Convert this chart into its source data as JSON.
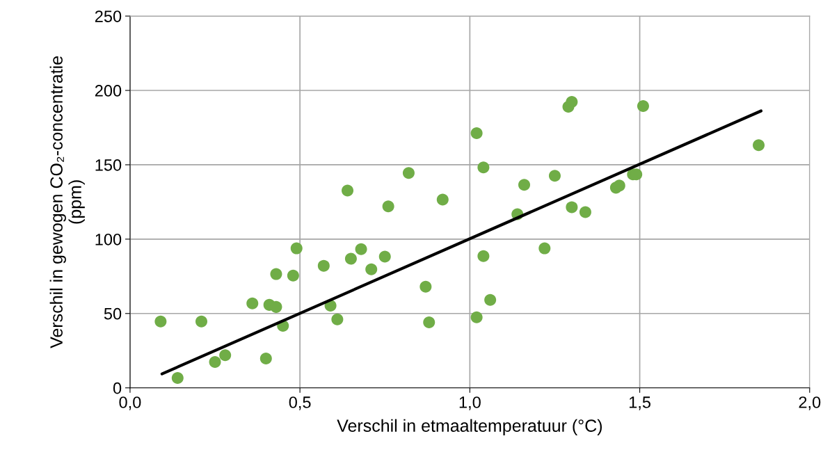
{
  "chart_data": {
    "type": "scatter",
    "xlabel": "Verschil in etmaaltemperatuur (°C)",
    "ylabel": "Verschil in gewogen CO₂-concentratie\n(ppm)",
    "xlim": [
      0,
      2
    ],
    "xticks": [
      {
        "value": 0,
        "label": "0,0"
      },
      {
        "value": 0.5,
        "label": "0,5"
      },
      {
        "value": 1,
        "label": "1,0"
      },
      {
        "value": 1.5,
        "label": "1,5"
      },
      {
        "value": 2,
        "label": "2,0"
      }
    ],
    "ylim": [
      0,
      250
    ],
    "yticks": [
      0,
      50,
      100,
      150,
      200,
      250
    ],
    "grid": true,
    "legend": false,
    "series": [
      {
        "marker": "circle",
        "color": "#70ad47",
        "x": [
          0.09,
          0.14,
          0.21,
          0.25,
          0.28,
          0.36,
          0.4,
          0.41,
          0.43,
          0.43,
          0.45,
          0.48,
          0.49,
          0.57,
          0.59,
          0.61,
          0.64,
          0.65,
          0.68,
          0.71,
          0.75,
          0.76,
          0.82,
          0.87,
          0.88,
          0.92,
          1.02,
          1.02,
          1.04,
          1.04,
          1.06,
          1.14,
          1.16,
          1.22,
          1.25,
          1.29,
          1.3,
          1.3,
          1.34,
          1.43,
          1.44,
          1.48,
          1.49,
          1.51,
          1.85
        ],
        "values": [
          44.6,
          6.6,
          44.6,
          17.4,
          22,
          56.8,
          19.7,
          55.8,
          54.4,
          76.5,
          41.7,
          75.5,
          93.8,
          82.1,
          55.3,
          46,
          132.7,
          86.8,
          93.3,
          79.7,
          88.2,
          122,
          144.5,
          68,
          44.1,
          126.6,
          47.4,
          171.2,
          148.2,
          88.6,
          59.1,
          116.8,
          136.5,
          93.8,
          142.6,
          189,
          192.3,
          121.5,
          118.2,
          134.6,
          136,
          143.5,
          143.5,
          189.5,
          163.2
        ]
      },
      {
        "type": "line",
        "color": "#000000",
        "line_style": "solid",
        "marker": "none",
        "x": [
          0.094,
          1.857
        ],
        "values": [
          9.4,
          186.2
        ]
      }
    ]
  }
}
